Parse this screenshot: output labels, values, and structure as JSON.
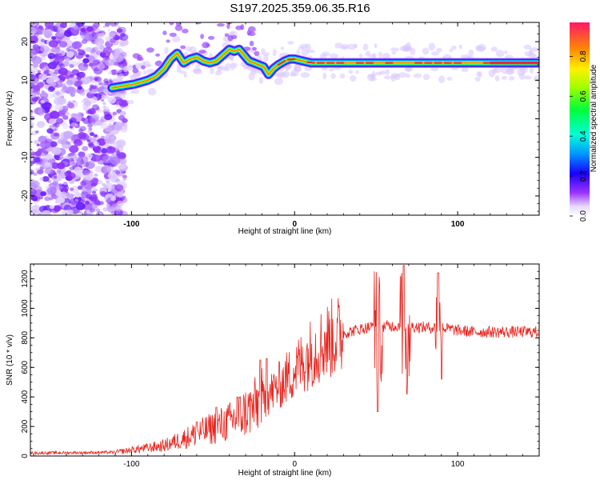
{
  "title": "S197.2025.359.06.35.R16",
  "colors": {
    "snr_line": "#e8261f",
    "ridge_core": "#e8263a",
    "frame": "#000000"
  },
  "chart_data": [
    {
      "type": "heatmap",
      "xlabel": "Height of straight line (km)",
      "ylabel": "Frequency (Hz)",
      "xlim": [
        -162,
        150
      ],
      "ylim": [
        -25,
        25
      ],
      "xticks": [
        -100,
        0,
        100
      ],
      "yticks": [
        -20,
        -10,
        0,
        10,
        20
      ],
      "colorbar": {
        "label": "Normalized spectral amplitude",
        "range": [
          0,
          0.97
        ],
        "ticks": [
          "0.0",
          "0.2",
          "0.4",
          "0.6",
          "0.8"
        ],
        "colormap": "rainbow"
      },
      "ridge": {
        "x": [
          -112,
          -105,
          -98,
          -90,
          -85,
          -80,
          -76,
          -72,
          -68,
          -64,
          -60,
          -56,
          -52,
          -48,
          -44,
          -40,
          -37,
          -34,
          -31,
          -28,
          -25,
          -22,
          -19,
          -16,
          -13,
          -10,
          -6,
          -3,
          0,
          5,
          10,
          20,
          30,
          40,
          50,
          60,
          70,
          80,
          90,
          100,
          110,
          120,
          130,
          140,
          150
        ],
        "y": [
          8,
          8.5,
          9,
          10,
          11,
          13,
          15.5,
          17,
          14.5,
          15.5,
          16,
          15,
          14.5,
          15,
          16.5,
          18,
          17.5,
          18,
          16.5,
          15,
          14.5,
          14,
          13.5,
          11.5,
          13,
          14,
          15,
          15.5,
          15.5,
          15,
          14.5,
          14.5,
          14.5,
          14.5,
          14.5,
          14.5,
          14.5,
          14.5,
          14.5,
          14.5,
          14.5,
          14.5,
          14.5,
          14.5,
          14.5
        ]
      }
    },
    {
      "type": "line",
      "xlabel": "Height of straight line (km)",
      "ylabel": "SNR (10 * v/v)",
      "xlim": [
        -162,
        150
      ],
      "ylim": [
        0,
        1300
      ],
      "xticks": [
        -100,
        0,
        100
      ],
      "yticks": [
        0,
        200,
        400,
        600,
        800,
        1000,
        1200
      ],
      "series": [
        {
          "trend": {
            "x": [
              -162,
              -110,
              -100,
              -80,
              -60,
              -40,
              -25,
              -10,
              0,
              10,
              20,
              30,
              40,
              50,
              60,
              70,
              80,
              90,
              100,
              110,
              120,
              130,
              140,
              150
            ],
            "y": [
              20,
              25,
              40,
              70,
              150,
              230,
              330,
              470,
              580,
              700,
              780,
              830,
              860,
              880,
              880,
              880,
              870,
              870,
              850,
              840,
              840,
              840,
              840,
              840
            ]
          },
          "peaks": [
            {
              "x": -60,
              "y": 230
            },
            {
              "x": -48,
              "y": 330
            },
            {
              "x": -35,
              "y": 400
            },
            {
              "x": -21,
              "y": 650
            },
            {
              "x": -17,
              "y": 660
            },
            {
              "x": 49,
              "y": 1250
            },
            {
              "x": 51,
              "y": 300
            },
            {
              "x": 67,
              "y": 1290
            },
            {
              "x": 69,
              "y": 420
            },
            {
              "x": 88,
              "y": 1240
            },
            {
              "x": 90,
              "y": 520
            }
          ]
        }
      ]
    }
  ]
}
